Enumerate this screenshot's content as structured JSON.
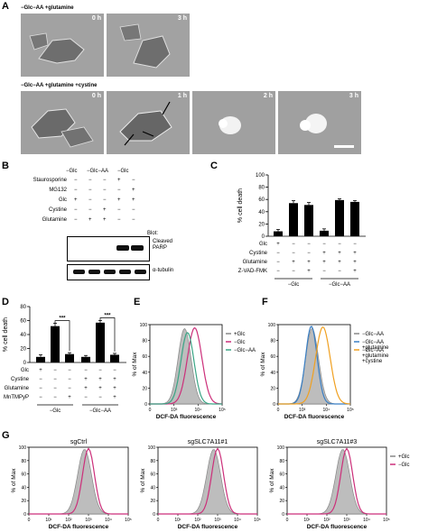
{
  "panelA": {
    "label": "A",
    "row1_title": "−Glc−AA +glutamine",
    "row2_title": "−Glc−AA +glutamine +cystine",
    "row1_times": [
      "0 h",
      "3 h"
    ],
    "row2_times": [
      "0 h",
      "1 h",
      "2 h",
      "3 h"
    ]
  },
  "panelB": {
    "label": "B",
    "col_groups": [
      "−Glc",
      "−Glc−AA",
      "−Glc"
    ],
    "rows": [
      {
        "name": "Staurosporine",
        "marks": [
          "−",
          "−",
          "−",
          "+",
          "−"
        ]
      },
      {
        "name": "MG132",
        "marks": [
          "−",
          "−",
          "−",
          "−",
          "+"
        ]
      },
      {
        "name": "Glc",
        "marks": [
          "+",
          "−",
          "−",
          "+",
          "+"
        ]
      },
      {
        "name": "Cystine",
        "marks": [
          "−",
          "−",
          "+",
          "−",
          "−"
        ]
      },
      {
        "name": "Glutamine",
        "marks": [
          "−",
          "+",
          "+",
          "−",
          "−"
        ]
      }
    ],
    "blot_header": "Blot:",
    "blots": [
      "Cleaved PARP",
      "α-tubulin"
    ]
  },
  "panelC": {
    "label": "C",
    "ylabel": "% cell death",
    "ylim": [
      0,
      100
    ],
    "yticks": [
      "0",
      "20",
      "40",
      "60",
      "80",
      "100"
    ],
    "values": [
      8,
      54,
      51,
      9,
      59,
      56
    ],
    "errors": [
      3,
      4,
      4,
      3,
      2,
      2
    ],
    "rows": [
      {
        "name": "Glc",
        "marks": [
          "+",
          "−",
          "−",
          "−",
          "−",
          "−"
        ]
      },
      {
        "name": "Cystine",
        "marks": [
          "−",
          "−",
          "−",
          "+",
          "+",
          "+"
        ]
      },
      {
        "name": "Glutamine",
        "marks": [
          "−",
          "+",
          "+",
          "+",
          "+",
          "+"
        ]
      },
      {
        "name": "Z-VAD-FMK",
        "marks": [
          "−",
          "−",
          "+",
          "−",
          "−",
          "+"
        ]
      }
    ],
    "groups": [
      "−Glc",
      "−Glc−AA"
    ]
  },
  "panelD": {
    "label": "D",
    "ylabel": "% cell death",
    "ylim": [
      0,
      80
    ],
    "yticks": [
      "0",
      "20",
      "40",
      "60",
      "80"
    ],
    "values": [
      8,
      52,
      12,
      8,
      57,
      11
    ],
    "errors": [
      3,
      4,
      2,
      2,
      3,
      2
    ],
    "sig": "***",
    "rows": [
      {
        "name": "Glc",
        "marks": [
          "+",
          "−",
          "−",
          "−",
          "−",
          "−"
        ]
      },
      {
        "name": "Cystine",
        "marks": [
          "−",
          "−",
          "−",
          "+",
          "+",
          "+"
        ]
      },
      {
        "name": "Glutamine",
        "marks": [
          "−",
          "−",
          "−",
          "+",
          "+",
          "+"
        ]
      },
      {
        "name": "MnTMPyP",
        "marks": [
          "−",
          "−",
          "+",
          "−",
          "−",
          "+"
        ]
      }
    ],
    "groups": [
      "−Glc",
      "−Glc−AA"
    ]
  },
  "panelE": {
    "label": "E",
    "ylabel": "% of Max",
    "xlabel": "DCF-DA fluorescence",
    "legend": [
      {
        "name": "+Glc",
        "color": "#888888"
      },
      {
        "name": "−Glc",
        "color": "#cc2f7a"
      },
      {
        "name": "−Glc−AA",
        "color": "#3aa585"
      }
    ]
  },
  "panelF": {
    "label": "F",
    "ylabel": "% of Max",
    "xlabel": "DCF-DA fluorescence",
    "legend": [
      {
        "name": "−Glc−AA",
        "color": "#888888"
      },
      {
        "name": "−Glc−AA +glutamine",
        "color": "#3a7fc4"
      },
      {
        "name": "−Glc−AA +glutamine +cystine",
        "color": "#f0a020"
      }
    ]
  },
  "panelG": {
    "label": "G",
    "ylabel": "% of Max",
    "xlabel": "DCF-DA fluorescence",
    "titles": [
      "sgCtrl",
      "sgSLC7A11#1",
      "sgSLC7A11#3"
    ],
    "legend": [
      {
        "name": "+Glc",
        "color": "#888888"
      },
      {
        "name": "−Glc",
        "color": "#cc2f7a"
      }
    ]
  },
  "histo": {
    "yticks": [
      "0",
      "20",
      "40",
      "60",
      "80",
      "100"
    ],
    "xticks": [
      "0",
      "10³",
      "10⁴",
      "10⁵"
    ],
    "xticks_g": [
      "0",
      "10¹",
      "10²",
      "10³",
      "10⁴",
      "10⁵"
    ]
  }
}
